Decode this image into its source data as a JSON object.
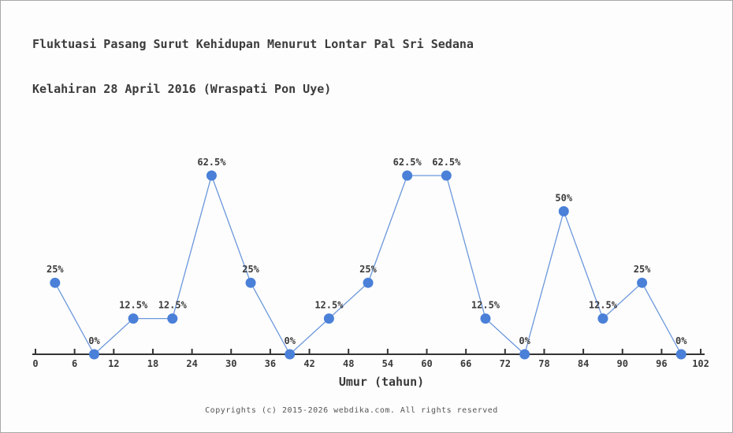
{
  "header": {
    "title_line1": "Fluktuasi Pasang Surut Kehidupan Menurut Lontar Pal Sri Sedana",
    "title_line2": "Kelahiran 28 April 2016 (Wraspati Pon Uye)"
  },
  "chart_data": {
    "type": "line",
    "title": "Fluktuasi Pasang Surut Kehidupan Menurut Lontar Pal Sri Sedana",
    "subtitle": "Kelahiran 28 April 2016 (Wraspati Pon Uye)",
    "x": [
      3,
      9,
      15,
      21,
      27,
      33,
      39,
      45,
      51,
      57,
      63,
      69,
      75,
      81,
      87,
      93,
      99
    ],
    "values": [
      25,
      0,
      12.5,
      12.5,
      62.5,
      25,
      0,
      12.5,
      25,
      62.5,
      62.5,
      12.5,
      0,
      50,
      12.5,
      25,
      0
    ],
    "point_labels": [
      "25%",
      "0%",
      "12.5%",
      "12.5%",
      "62.5%",
      "25%",
      "0%",
      "12.5%",
      "25%",
      "62.5%",
      "62.5%",
      "12.5%",
      "0%",
      "50%",
      "12.5%",
      "25%",
      "0%"
    ],
    "x_ticks": [
      0,
      6,
      12,
      18,
      24,
      30,
      36,
      42,
      48,
      54,
      60,
      66,
      72,
      78,
      84,
      90,
      96,
      102
    ],
    "xlabel": "Umur (tahun)",
    "ylabel": "",
    "xlim": [
      0,
      102
    ],
    "ylim": [
      0,
      70
    ],
    "grid": false,
    "legend": null,
    "y_axis_shown": false,
    "colors": {
      "marker": "#4a80d8",
      "line": "#6b97dc",
      "axis": "#333333",
      "text": "#3a3a3a"
    }
  },
  "footer": {
    "copyright": "Copyrights (c) 2015-2026 webdika.com. All rights reserved"
  }
}
